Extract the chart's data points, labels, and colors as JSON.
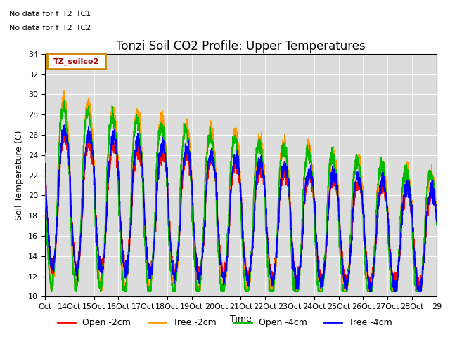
{
  "title": "Tonzi Soil CO2 Profile: Upper Temperatures",
  "ylabel": "Soil Temperature (C)",
  "xlabel": "Time",
  "ylim": [
    10,
    34
  ],
  "yticks": [
    10,
    12,
    14,
    16,
    18,
    20,
    22,
    24,
    26,
    28,
    30,
    32,
    34
  ],
  "annotations": [
    "No data for f_T2_TC1",
    "No data for f_T2_TC2"
  ],
  "legend_label": "TZ_soilco2",
  "series_labels": [
    "Open -2cm",
    "Tree -2cm",
    "Open -4cm",
    "Tree -4cm"
  ],
  "series_colors": [
    "#ff0000",
    "#ff9900",
    "#00bb00",
    "#0000ff"
  ],
  "plot_bg_color": "#dcdcdc",
  "title_fontsize": 12,
  "axis_fontsize": 9,
  "tick_fontsize": 8
}
